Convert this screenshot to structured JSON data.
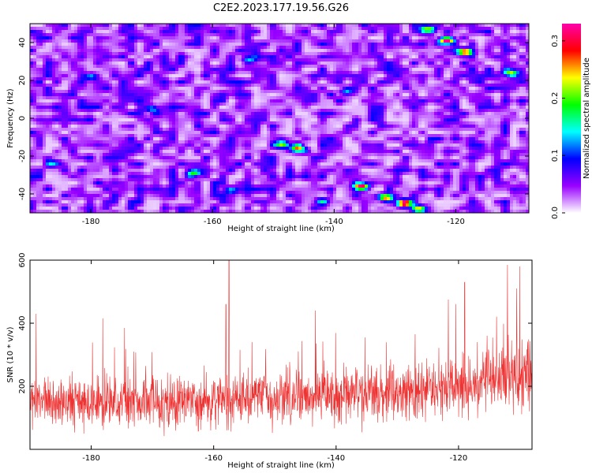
{
  "title": "C2E2.2023.177.19.56.G26",
  "chart_data": [
    {
      "type": "heatmap",
      "xlabel": "Height of straight line (km)",
      "ylabel": "Frequency (Hz)",
      "xlim": [
        -190,
        -108
      ],
      "ylim": [
        -50,
        50
      ],
      "xticks": [
        "-180",
        "-160",
        "-140",
        "-120"
      ],
      "yticks": [
        "-40",
        "-20",
        "0",
        "20",
        "40"
      ],
      "colorbar": {
        "label": "Normalized spectral amplitude",
        "range": [
          0.0,
          0.33
        ],
        "ticks": [
          "0.0",
          "0.1",
          "0.2",
          "0.3"
        ],
        "colors": [
          "#ffffff",
          "#9900ff",
          "#0000ff",
          "#00ffff",
          "#00ff00",
          "#ffff00",
          "#ff0000",
          "#ff00aa"
        ]
      },
      "background_level": 0.04,
      "hotspots": [
        {
          "x": -124.5,
          "y": 47,
          "v": 0.18
        },
        {
          "x": -121.5,
          "y": 41,
          "v": 0.33
        },
        {
          "x": -118.5,
          "y": 35,
          "v": 0.3
        },
        {
          "x": -111,
          "y": 24,
          "v": 0.18
        },
        {
          "x": -146,
          "y": -16,
          "v": 0.2
        },
        {
          "x": -148.5,
          "y": -14,
          "v": 0.16
        },
        {
          "x": -163,
          "y": -29,
          "v": 0.15
        },
        {
          "x": -135.5,
          "y": -36,
          "v": 0.3
        },
        {
          "x": -131.5,
          "y": -42,
          "v": 0.24
        },
        {
          "x": -128.5,
          "y": -45,
          "v": 0.33
        },
        {
          "x": -126,
          "y": -48,
          "v": 0.22
        },
        {
          "x": -180,
          "y": 22,
          "v": 0.12
        },
        {
          "x": -170,
          "y": 5,
          "v": 0.1
        },
        {
          "x": -142,
          "y": -44,
          "v": 0.12
        },
        {
          "x": -157,
          "y": -38,
          "v": 0.1
        },
        {
          "x": -154,
          "y": 31,
          "v": 0.09
        },
        {
          "x": -138,
          "y": 14,
          "v": 0.09
        },
        {
          "x": -186,
          "y": -24,
          "v": 0.1
        }
      ]
    },
    {
      "type": "line",
      "xlabel": "Height of straight line (km)",
      "ylabel": "SNR (10 * v/v)",
      "xlim": [
        -190,
        -108
      ],
      "ylim": [
        0,
        600
      ],
      "xticks": [
        "-180",
        "-160",
        "-140",
        "-120"
      ],
      "yticks": [
        "200",
        "400",
        "600"
      ],
      "color": "#ee3333",
      "baseline": [
        [
          -190,
          150
        ],
        [
          -175,
          148
        ],
        [
          -160,
          150
        ],
        [
          -150,
          165
        ],
        [
          -140,
          170
        ],
        [
          -130,
          180
        ],
        [
          -120,
          200
        ],
        [
          -115,
          220
        ],
        [
          -108,
          250
        ]
      ],
      "spread": [
        [
          -190,
          55
        ],
        [
          -175,
          55
        ],
        [
          -160,
          58
        ],
        [
          -150,
          60
        ],
        [
          -140,
          62
        ],
        [
          -130,
          65
        ],
        [
          -120,
          72
        ],
        [
          -115,
          78
        ],
        [
          -108,
          85
        ]
      ],
      "peaks": [
        {
          "x": -157.5,
          "y": 600
        },
        {
          "x": -112,
          "y": 585
        },
        {
          "x": -110,
          "y": 580
        },
        {
          "x": -119,
          "y": 530
        },
        {
          "x": -110.5,
          "y": 510
        },
        {
          "x": -158,
          "y": 460
        },
        {
          "x": -189,
          "y": 430
        }
      ]
    }
  ]
}
